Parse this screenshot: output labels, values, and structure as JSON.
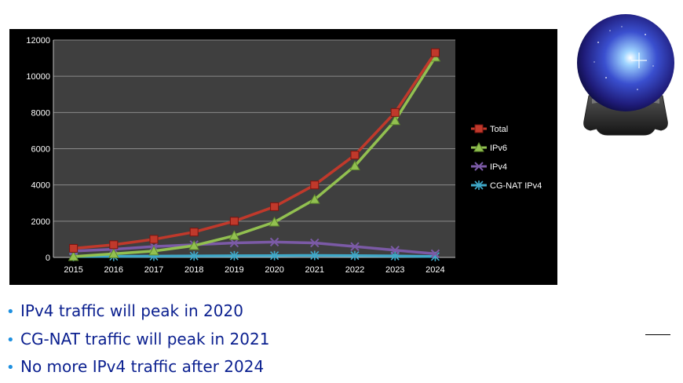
{
  "chart_data": {
    "type": "line",
    "categories": [
      "2015",
      "2016",
      "2017",
      "2018",
      "2019",
      "2020",
      "2021",
      "2022",
      "2023",
      "2024"
    ],
    "ylim": [
      0,
      12000
    ],
    "yticks": [
      0,
      2000,
      4000,
      6000,
      8000,
      10000,
      12000
    ],
    "grid": true,
    "legend_position": "right",
    "series": [
      {
        "name": "Total",
        "color": "#c0392b",
        "marker": "square",
        "values": [
          500,
          700,
          1000,
          1400,
          2000,
          2800,
          4000,
          5650,
          8000,
          11300
        ]
      },
      {
        "name": "IPv6",
        "color": "#92c050",
        "marker": "triangle",
        "values": [
          50,
          200,
          350,
          650,
          1200,
          1950,
          3200,
          5050,
          7550,
          11050
        ]
      },
      {
        "name": "IPv4",
        "color": "#7b5aa6",
        "marker": "x",
        "values": [
          350,
          450,
          600,
          700,
          800,
          850,
          800,
          600,
          400,
          200
        ]
      },
      {
        "name": "CG-NAT IPv4",
        "color": "#3fa8c8",
        "marker": "star",
        "values": [
          50,
          60,
          70,
          80,
          90,
          100,
          110,
          100,
          80,
          50
        ]
      }
    ]
  },
  "decoration": {
    "icon": "crystal-ball-icon"
  },
  "bullets": [
    "IPv4 traffic will peak in 2020",
    "CG-NAT traffic will peak in 2021",
    "No more IPv4 traffic after 2024"
  ]
}
